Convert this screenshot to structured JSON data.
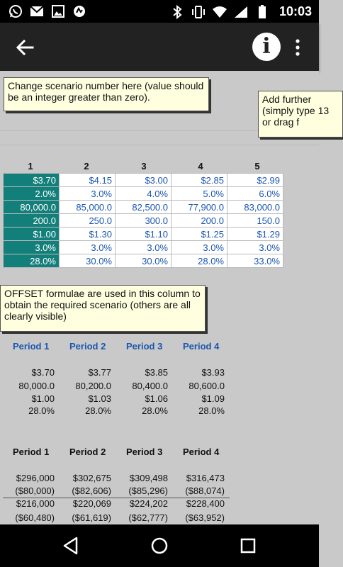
{
  "status_bar": {
    "time": "10:03",
    "left_icons": [
      "whatsapp-icon",
      "mail-icon",
      "image-icon",
      "app-icon"
    ],
    "right_icons": [
      "bluetooth-icon",
      "vibrate-icon",
      "wifi-icon",
      "signal-icon",
      "battery-icon"
    ]
  },
  "app_bar": {
    "back_icon": "arrow-left-icon",
    "info_icon": "info-icon",
    "info_label": "i",
    "more_icon": "more-vert-icon"
  },
  "notes": {
    "scenario": "Change scenario number here (value should be an integer greater than zero).",
    "further": "Add further (simply type 13 or drag f",
    "offset": "OFFSET formulae are used in this column to obtain the required scenario (others are all clearly visible)"
  },
  "scenario_headers": [
    "1",
    "2",
    "3",
    "4",
    "5"
  ],
  "scenario_rows": [
    [
      "$3.70",
      "$4.15",
      "$3.00",
      "$2.85",
      "$2.99"
    ],
    [
      "2.0%",
      "3.0%",
      "4.0%",
      "5.0%",
      "6.0%"
    ],
    [
      "80,000.0",
      "85,000.0",
      "82,500.0",
      "77,900.0",
      "83,000.0"
    ],
    [
      "200.0",
      "250.0",
      "300.0",
      "200.0",
      "150.0"
    ],
    [
      "$1.00",
      "$1.30",
      "$1.10",
      "$1.25",
      "$1.29"
    ],
    [
      "3.0%",
      "3.0%",
      "3.0%",
      "3.0%",
      "3.0%"
    ],
    [
      "28.0%",
      "30.0%",
      "30.0%",
      "28.0%",
      "33.0%"
    ]
  ],
  "periods_1": {
    "headers": [
      "Period 1",
      "Period 2",
      "Period 3",
      "Period 4"
    ],
    "rows": [
      [
        "$3.70",
        "$3.77",
        "$3.85",
        "$3.93"
      ],
      [
        "80,000.0",
        "80,200.0",
        "80,400.0",
        "80,600.0"
      ],
      [
        "$1.00",
        "$1.03",
        "$1.06",
        "$1.09"
      ],
      [
        "28.0%",
        "28.0%",
        "28.0%",
        "28.0%"
      ]
    ]
  },
  "periods_2": {
    "headers": [
      "Period 1",
      "Period 2",
      "Period 3",
      "Period 4"
    ],
    "rows": [
      [
        "$296,000",
        "$302,675",
        "$309,498",
        "$316,473"
      ],
      [
        "($80,000)",
        "($82,606)",
        "($85,296)",
        "($88,074)"
      ],
      [
        "$216,000",
        "$220,069",
        "$224,202",
        "$228,400"
      ],
      [
        "($60,480)",
        "($61,619)",
        "($62,777)",
        "($63,952)"
      ]
    ]
  },
  "nav_bar": {
    "icons": [
      "back-triangle-icon",
      "home-circle-icon",
      "recents-square-icon"
    ]
  },
  "colors": {
    "selected_cell": "#137f7a",
    "link_blue": "#1a56b0",
    "note_bg": "#ffffe0"
  }
}
